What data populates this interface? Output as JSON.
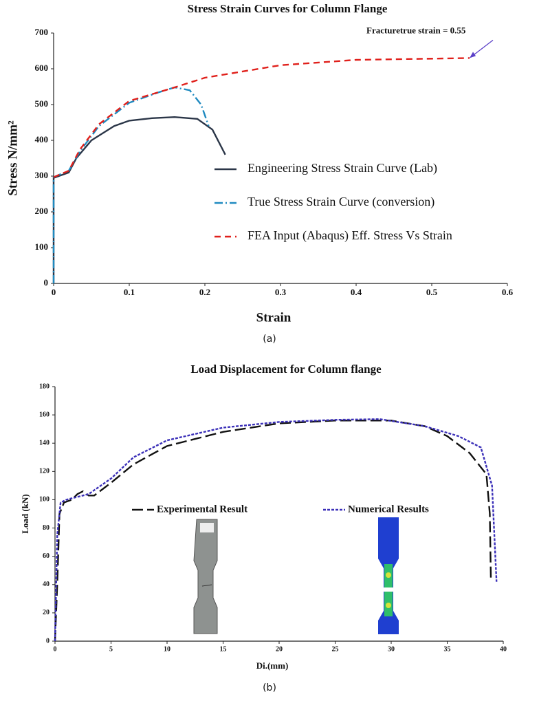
{
  "chart_data": [
    {
      "type": "line",
      "title": "Stress Strain Curves for Column Flange",
      "caption": "(a)",
      "x_label": "Strain",
      "y_label": "Stress N/mm²",
      "xlim": [
        0,
        0.6
      ],
      "xticks": [
        0,
        0.1,
        0.2,
        0.3,
        0.4,
        0.5,
        0.6
      ],
      "ylim": [
        0,
        700
      ],
      "yticks": [
        0,
        100,
        200,
        300,
        400,
        500,
        600,
        700
      ],
      "legend": "center right",
      "series": [
        {
          "name": "Engineering Stress Strain Curve (Lab)",
          "color": "#2b3648",
          "dash": "solid",
          "x": [
            0,
            0,
            0.02,
            0.03,
            0.05,
            0.08,
            0.1,
            0.13,
            0.16,
            0.19,
            0.21,
            0.227
          ],
          "values": [
            0,
            295,
            310,
            350,
            400,
            440,
            455,
            462,
            465,
            460,
            430,
            360
          ]
        },
        {
          "name": "True Stress Strain Curve (conversion)",
          "color": "#1f8ac0",
          "dash": "dashdot",
          "x": [
            0,
            0,
            0.02,
            0.035,
            0.06,
            0.1,
            0.14,
            0.16,
            0.18,
            0.195,
            0.205
          ],
          "values": [
            0,
            297,
            315,
            370,
            440,
            505,
            535,
            548,
            540,
            500,
            440
          ]
        },
        {
          "name": "FEA Input (Abaqus) Eff. Stress Vs Strain",
          "color": "#e0201b",
          "dash": "dashed",
          "x": [
            0,
            0.02,
            0.035,
            0.06,
            0.1,
            0.16,
            0.2,
            0.3,
            0.4,
            0.55
          ],
          "values": [
            297,
            315,
            375,
            445,
            510,
            548,
            575,
            610,
            625,
            630
          ]
        }
      ],
      "annotations": [
        {
          "text": "Fracturetrue strain = 0.55",
          "x": 0.55,
          "y": 630
        }
      ]
    },
    {
      "type": "line",
      "title": "Load Displacement for Column flange",
      "caption": "(b)",
      "x_label": "Di.(mm)",
      "y_label": "Load (kN)",
      "xlim": [
        0,
        40
      ],
      "xticks": [
        0,
        5,
        10,
        15,
        20,
        25,
        30,
        35,
        40
      ],
      "ylim": [
        0,
        180
      ],
      "yticks": [
        0,
        20,
        40,
        60,
        80,
        100,
        120,
        140,
        160,
        180
      ],
      "legend": "center",
      "series": [
        {
          "name": "Experimental Result",
          "color": "#111111",
          "dash": "longdash",
          "x": [
            0,
            0.2,
            0.4,
            0.8,
            1.5,
            2,
            2.5,
            3,
            3.5,
            4,
            5,
            7,
            10,
            15,
            20,
            25,
            30,
            33,
            35,
            37,
            38.5,
            38.8,
            38.9
          ],
          "values": [
            0,
            40,
            90,
            98,
            100,
            104,
            106,
            103,
            103,
            106,
            112,
            125,
            138,
            148,
            154,
            156,
            156,
            152,
            145,
            133,
            118,
            90,
            42
          ]
        },
        {
          "name": "Numerical Results",
          "color": "#3a2fb8",
          "dash": "dotted",
          "x": [
            0,
            0.2,
            0.5,
            1,
            3,
            5,
            7,
            10,
            15,
            20,
            25,
            29,
            33,
            36,
            38,
            39,
            39.4
          ],
          "values": [
            0,
            75,
            98,
            100,
            104,
            115,
            130,
            142,
            151,
            155,
            156.5,
            157,
            152,
            145,
            137,
            110,
            42
          ]
        }
      ]
    }
  ]
}
